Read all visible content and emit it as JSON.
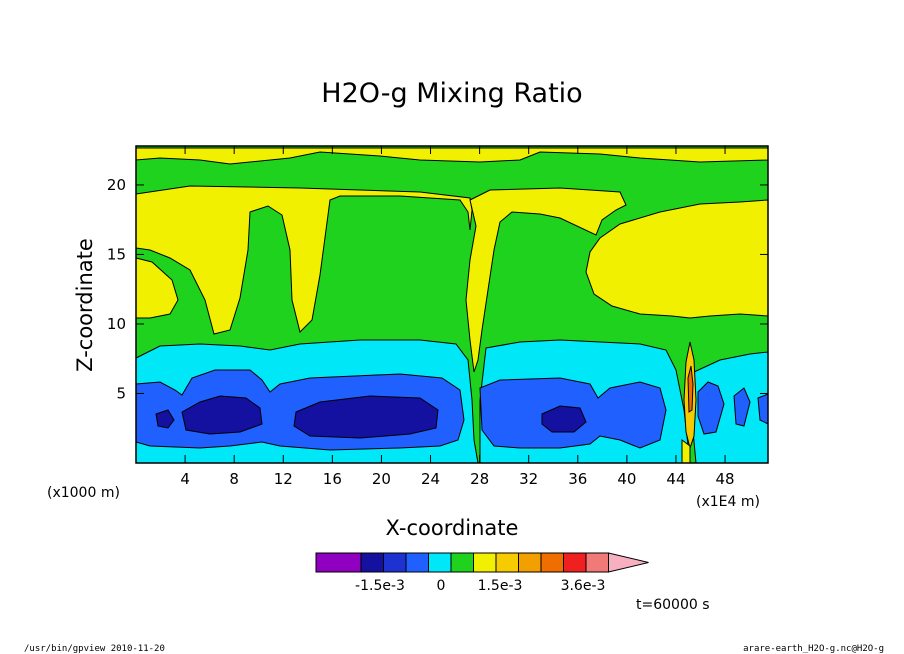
{
  "chart_data": {
    "type": "heatmap",
    "title": "H2O-g Mixing Ratio",
    "xlabel": "X-coordinate",
    "ylabel": "Z-coordinate",
    "x_unit_left": "(x1000 m)",
    "x_unit_right": "(x1E4 m)",
    "xlim": [
      0,
      51.5
    ],
    "ylim": [
      0,
      22.8
    ],
    "x_ticks": [
      "4",
      "8",
      "12",
      "16",
      "20",
      "24",
      "28",
      "32",
      "36",
      "40",
      "44",
      "48"
    ],
    "y_ticks": [
      "5",
      "10",
      "15",
      "20"
    ],
    "colorbar": {
      "colors": [
        "#8f00c0",
        "#1410a0",
        "#1e32d2",
        "#2060ff",
        "#00e8f8",
        "#1ed21e",
        "#f0f000",
        "#f6cc00",
        "#f2a000",
        "#f06e00",
        "#f02020",
        "#f07a78",
        "#f8b0c0"
      ],
      "labels": [
        "-1.5e-3",
        "0",
        "1.5e-3",
        "3.6e-3"
      ]
    },
    "time_label": "t=60000 s",
    "footer_left": "/usr/bin/gpview  2010-11-20",
    "footer_right": "arare-earth_H2O-g.nc@H2O-g"
  }
}
